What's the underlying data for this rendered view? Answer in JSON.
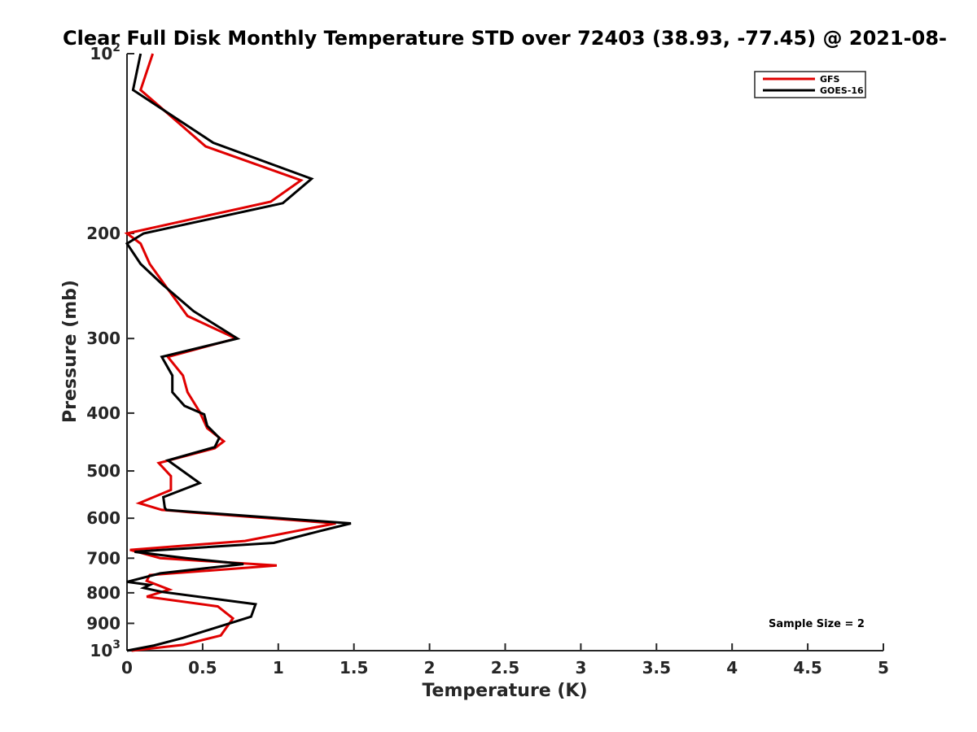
{
  "chart_data": {
    "type": "line",
    "title": "Clear Full Disk Monthly Temperature STD over 72403 (38.93, -77.45) @ 2021-08-",
    "xlabel": "Temperature (K)",
    "ylabel": "Pressure (mb)",
    "xlim": [
      0,
      5
    ],
    "ylim": [
      100,
      1000
    ],
    "y_scale": "log",
    "y_reversed": true,
    "grid": false,
    "legend_position": "top-right",
    "x_ticks": [
      "0",
      "0.5",
      "1",
      "1.5",
      "2",
      "2.5",
      "3",
      "3.5",
      "4",
      "4.5",
      "5"
    ],
    "y_ticks": [
      {
        "base": "10",
        "exp": "2",
        "value": 100
      },
      {
        "label": "200",
        "value": 200
      },
      {
        "label": "300",
        "value": 300
      },
      {
        "label": "400",
        "value": 400
      },
      {
        "label": "500",
        "value": 500
      },
      {
        "label": "600",
        "value": 600
      },
      {
        "label": "700",
        "value": 700
      },
      {
        "label": "800",
        "value": 800
      },
      {
        "label": "900",
        "value": 900
      },
      {
        "base": "10",
        "exp": "3",
        "value": 1000
      }
    ],
    "annotation": "Sample Size = 2",
    "series": [
      {
        "name": "GFS",
        "color": "#e00000",
        "points": [
          [
            0.17,
            100
          ],
          [
            0.09,
            115
          ],
          [
            0.52,
            143
          ],
          [
            1.15,
            163
          ],
          [
            0.95,
            177
          ],
          [
            0.0,
            200
          ],
          [
            0.09,
            208
          ],
          [
            0.15,
            225
          ],
          [
            0.25,
            244
          ],
          [
            0.4,
            275
          ],
          [
            0.72,
            300
          ],
          [
            0.27,
            322
          ],
          [
            0.37,
            346
          ],
          [
            0.4,
            369
          ],
          [
            0.48,
            398
          ],
          [
            0.53,
            424
          ],
          [
            0.64,
            446
          ],
          [
            0.58,
            458
          ],
          [
            0.21,
            485
          ],
          [
            0.29,
            510
          ],
          [
            0.29,
            538
          ],
          [
            0.08,
            566
          ],
          [
            0.23,
            581
          ],
          [
            0.34,
            584
          ],
          [
            0.4,
            586
          ],
          [
            1.38,
            612
          ],
          [
            0.78,
            655
          ],
          [
            0.02,
            678
          ],
          [
            0.22,
            700
          ],
          [
            0.99,
            720
          ],
          [
            0.15,
            747
          ],
          [
            0.13,
            764
          ],
          [
            0.28,
            790
          ],
          [
            0.13,
            812
          ],
          [
            0.6,
            843
          ],
          [
            0.7,
            883
          ],
          [
            0.62,
            943
          ],
          [
            0.37,
            978
          ],
          [
            0.03,
            1000
          ]
        ]
      },
      {
        "name": "GOES-16",
        "color": "#000000",
        "points": [
          [
            0.09,
            100
          ],
          [
            0.04,
            115
          ],
          [
            0.57,
            141
          ],
          [
            1.22,
            162
          ],
          [
            1.03,
            178
          ],
          [
            0.11,
            200
          ],
          [
            0.0,
            208
          ],
          [
            0.09,
            225
          ],
          [
            0.23,
            243
          ],
          [
            0.44,
            270
          ],
          [
            0.73,
            300
          ],
          [
            0.23,
            322
          ],
          [
            0.3,
            346
          ],
          [
            0.3,
            369
          ],
          [
            0.38,
            389
          ],
          [
            0.51,
            402
          ],
          [
            0.53,
            420
          ],
          [
            0.61,
            440
          ],
          [
            0.58,
            456
          ],
          [
            0.27,
            480
          ],
          [
            0.48,
            524
          ],
          [
            0.24,
            553
          ],
          [
            0.25,
            576
          ],
          [
            0.26,
            581
          ],
          [
            0.33,
            583
          ],
          [
            1.48,
            612
          ],
          [
            1.28,
            630
          ],
          [
            0.97,
            660
          ],
          [
            0.19,
            679
          ],
          [
            0.05,
            683
          ],
          [
            0.39,
            700
          ],
          [
            0.77,
            716
          ],
          [
            0.22,
            742
          ],
          [
            0.0,
            767
          ],
          [
            0.15,
            776
          ],
          [
            0.11,
            785
          ],
          [
            0.23,
            797
          ],
          [
            0.85,
            836
          ],
          [
            0.82,
            877
          ],
          [
            0.37,
            952
          ],
          [
            0.18,
            980
          ],
          [
            0.0,
            1000
          ]
        ]
      }
    ]
  }
}
